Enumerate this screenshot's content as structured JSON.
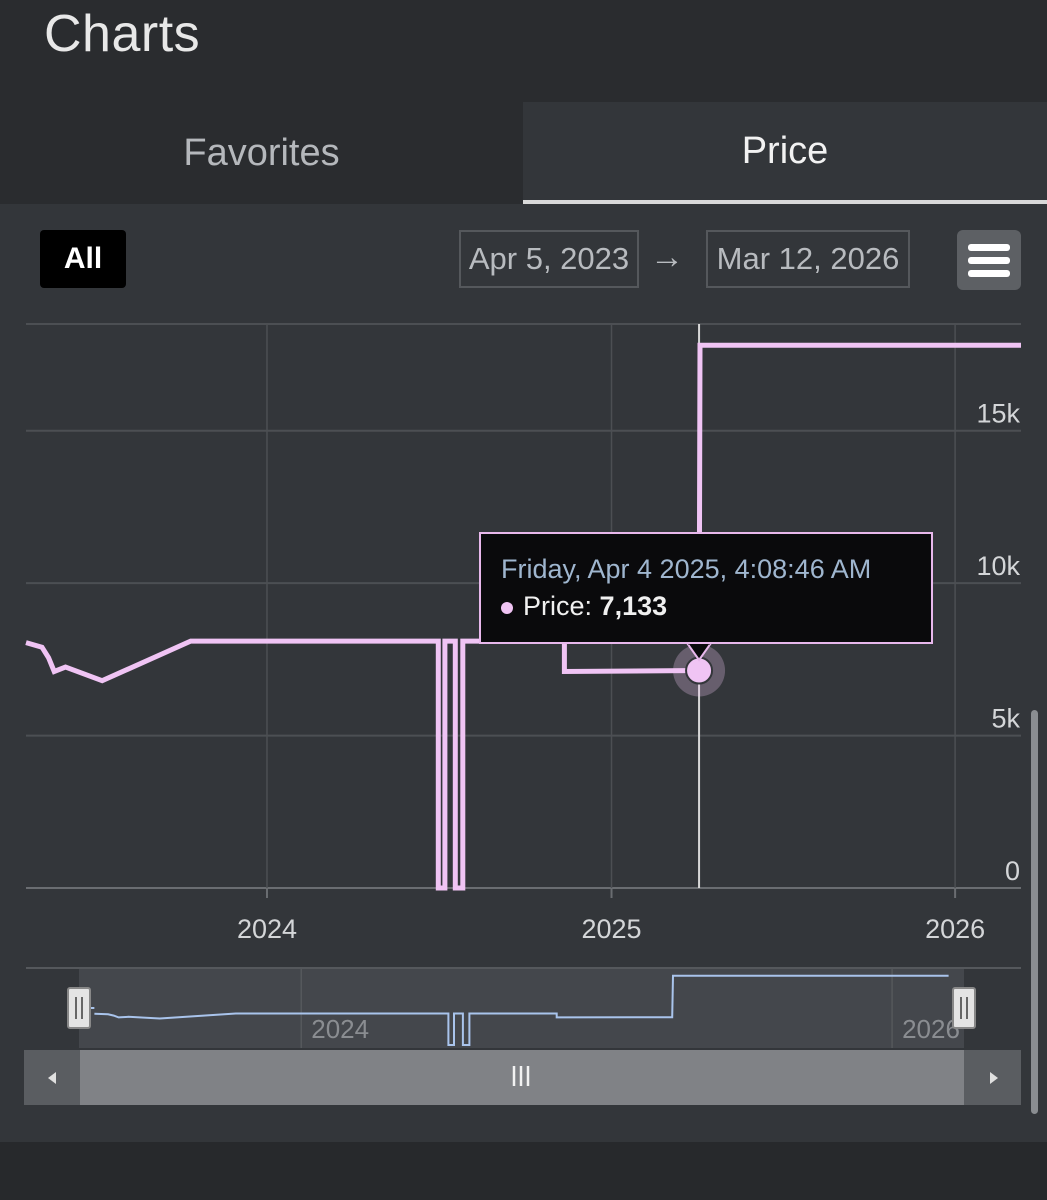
{
  "app": {
    "title": "Charts"
  },
  "tabs": [
    {
      "label": "Favorites",
      "active": false
    },
    {
      "label": "Price",
      "active": true
    }
  ],
  "toolbar": {
    "range_button": "All",
    "date_from": "Apr 5, 2023",
    "arrow": "→",
    "date_to": "Mar 12, 2026",
    "menu_icon": "hamburger-menu-icon"
  },
  "tooltip": {
    "date": "Friday, Apr 4 2025, 4:08:46 AM",
    "series_label": "Price:",
    "value": "7,133"
  },
  "navigator": {
    "handle_left": "ǁ",
    "handle_right": "ǁ",
    "scroll_grip": "III",
    "scroll_left": "◂",
    "scroll_right": "▸"
  },
  "colors": {
    "line": "#f0c4f4",
    "navigator_line": "#a9c4ec",
    "grid": "#4c4f53",
    "background": "#33363a"
  },
  "chart_data": {
    "type": "line",
    "step": true,
    "x_type": "datetime",
    "ylim": [
      0,
      18500
    ],
    "y_ticks": [
      "0",
      "5k",
      "10k",
      "15k"
    ],
    "y_tick_values": [
      0,
      5000,
      10000,
      15000
    ],
    "x_ticks": [
      "2024",
      "2025",
      "2026"
    ],
    "x_tick_values": [
      "2024-01-01",
      "2025-01-01",
      "2026-01-01"
    ],
    "xlim": [
      "2023-04-20",
      "2026-03-12"
    ],
    "legend": "none",
    "grid": true,
    "series": [
      {
        "points": [
          [
            "2023-04-20",
            8050
          ],
          [
            "2023-05-07",
            7900
          ],
          [
            "2023-05-14",
            7550
          ],
          [
            "2023-05-20",
            7100
          ],
          [
            "2023-06-01",
            7250
          ],
          [
            "2023-07-10",
            6800
          ],
          [
            "2023-10-12",
            8100
          ],
          [
            "2024-07-01",
            8100
          ],
          [
            "2024-07-01",
            0
          ],
          [
            "2024-07-08",
            0
          ],
          [
            "2024-07-08",
            8100
          ],
          [
            "2024-07-19",
            8100
          ],
          [
            "2024-07-19",
            0
          ],
          [
            "2024-07-27",
            0
          ],
          [
            "2024-07-27",
            8100
          ],
          [
            "2024-11-12",
            8100
          ],
          [
            "2024-11-12",
            7100
          ],
          [
            "2025-04-04",
            7133
          ],
          [
            "2025-04-05",
            17800
          ],
          [
            "2026-03-12",
            17800
          ]
        ]
      }
    ],
    "highlight_point": [
      "2025-04-04",
      7133
    ],
    "crosshair_x": "2025-04-04"
  }
}
